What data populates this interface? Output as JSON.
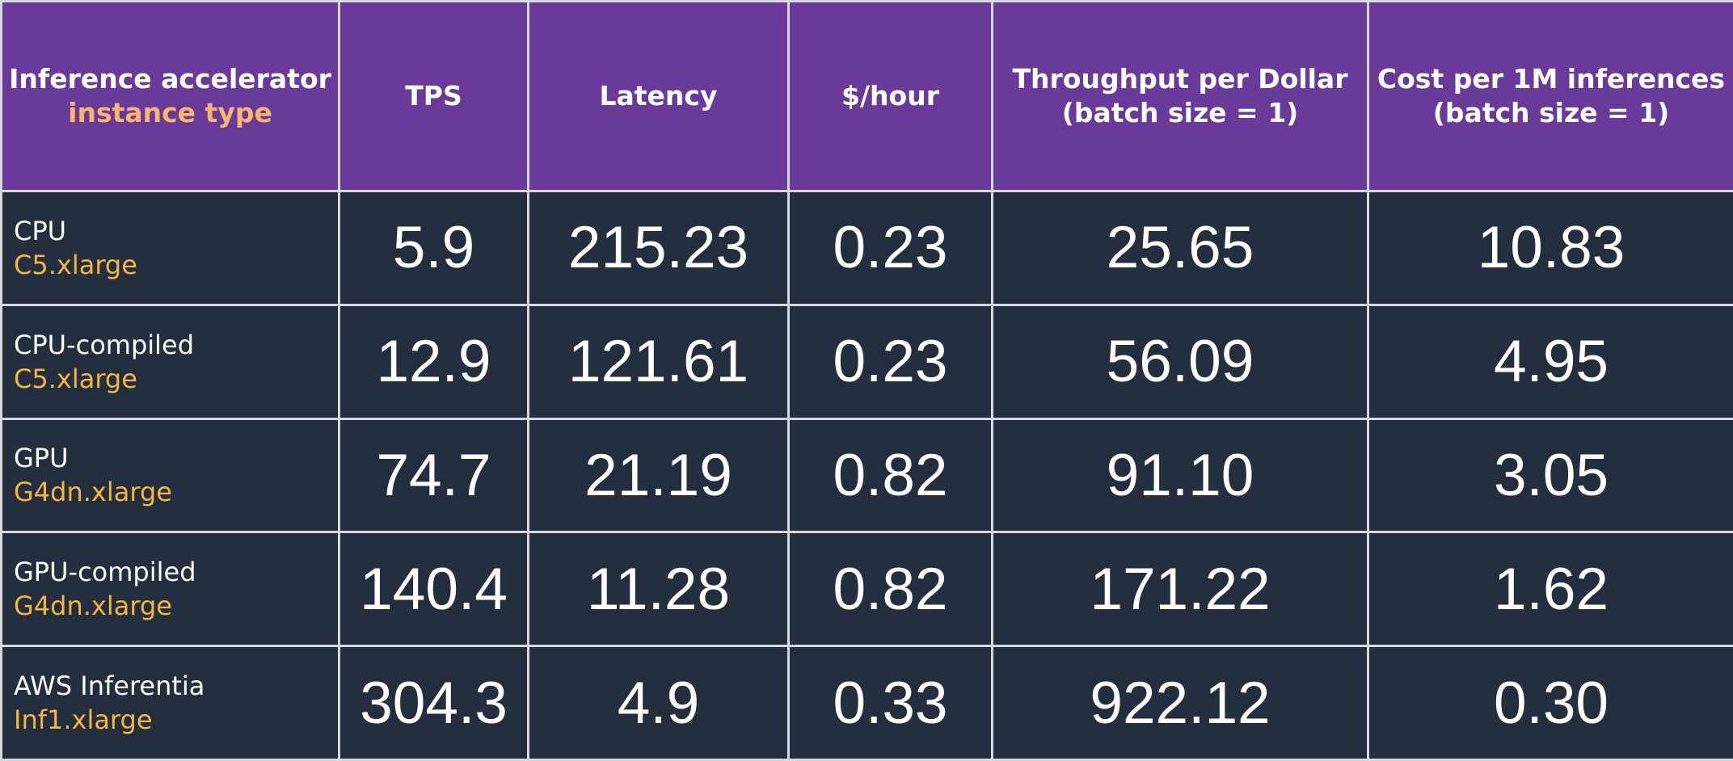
{
  "colors": {
    "header_bg": "#693a9a",
    "header_text": "#ffffff",
    "header_subtitle": "#f7b66b",
    "row_bg": "#232f3e",
    "instance_text": "#f5b63f",
    "border": "#d7d9de"
  },
  "table": {
    "headers": {
      "accelerator": {
        "title": "Inference accelerator",
        "subtitle": "instance type"
      },
      "tps": "TPS",
      "latency": "Latency",
      "price": "$/hour",
      "throughput": {
        "line1": "Throughput per Dollar",
        "line2": "(batch size = 1)"
      },
      "cost": {
        "line1": "Cost per 1M inferences",
        "line2": "(batch size = 1)"
      }
    },
    "rows": [
      {
        "accelerator": "CPU",
        "instance": "C5.xlarge",
        "tps": "5.9",
        "latency": "215.23",
        "price": "0.23",
        "throughput": "25.65",
        "cost": "10.83"
      },
      {
        "accelerator": "CPU-compiled",
        "instance": "C5.xlarge",
        "tps": "12.9",
        "latency": "121.61",
        "price": "0.23",
        "throughput": "56.09",
        "cost": "4.95"
      },
      {
        "accelerator": "GPU",
        "instance": "G4dn.xlarge",
        "tps": "74.7",
        "latency": "21.19",
        "price": "0.82",
        "throughput": "91.10",
        "cost": "3.05"
      },
      {
        "accelerator": "GPU-compiled",
        "instance": "G4dn.xlarge",
        "tps": "140.4",
        "latency": "11.28",
        "price": "0.82",
        "throughput": "171.22",
        "cost": "1.62"
      },
      {
        "accelerator": "AWS Inferentia",
        "instance": "Inf1.xlarge",
        "tps": "304.3",
        "latency": "4.9",
        "price": "0.33",
        "throughput": "922.12",
        "cost": "0.30"
      }
    ]
  }
}
